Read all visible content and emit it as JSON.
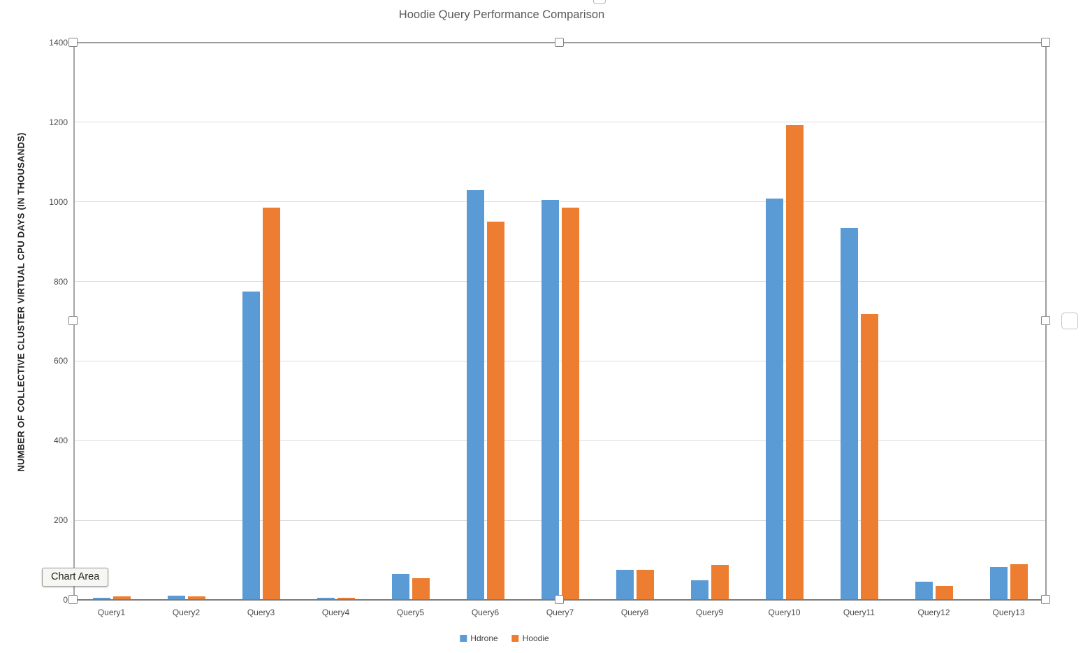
{
  "chart_data": {
    "type": "bar",
    "title": "Hoodie Query Performance Comparison",
    "xlabel": "",
    "ylabel": "NUMBER OF COLLECTIVE CLUSTER VIRTUAL CPU DAYS (IN THOUSANDS)",
    "categories": [
      "Query1",
      "Query2",
      "Query3",
      "Query4",
      "Query5",
      "Query6",
      "Query7",
      "Query8",
      "Query9",
      "Query10",
      "Query11",
      "Query12",
      "Query13"
    ],
    "series": [
      {
        "name": "Hdrone",
        "color": "#5B9BD5",
        "values": [
          5,
          10,
          775,
          5,
          65,
          1030,
          1005,
          75,
          50,
          1008,
          935,
          45,
          83
        ]
      },
      {
        "name": "Hoodie",
        "color": "#ED7D31",
        "values": [
          8,
          8,
          985,
          5,
          55,
          950,
          985,
          76,
          88,
          1192,
          718,
          35,
          90
        ]
      }
    ],
    "ylim": [
      0,
      1400
    ],
    "yticks": [
      0,
      200,
      400,
      600,
      800,
      1000,
      1200,
      1400
    ],
    "grid": true,
    "legend_position": "bottom"
  },
  "selection": {
    "tooltip": "Chart Area"
  }
}
